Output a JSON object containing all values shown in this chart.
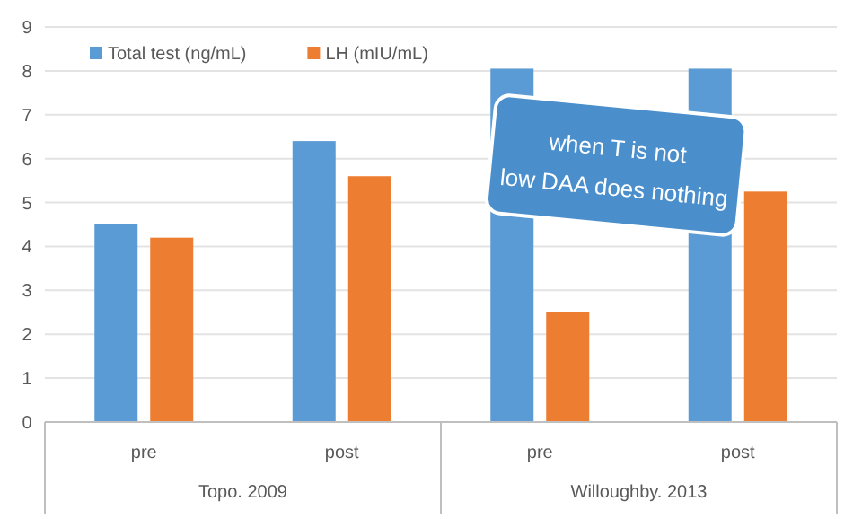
{
  "chart_data": {
    "type": "bar",
    "categories": [
      "pre",
      "post",
      "pre",
      "post"
    ],
    "series": [
      {
        "name": "Total test (ng/mL)",
        "color": "#5b9bd5",
        "values": [
          4.5,
          6.4,
          8.05,
          8.05
        ]
      },
      {
        "name": "LH (mIU/mL)",
        "color": "#ed7d31",
        "values": [
          4.2,
          5.6,
          2.5,
          5.25
        ]
      }
    ],
    "ylim": [
      0,
      9
    ],
    "yticks": [
      0,
      1,
      2,
      3,
      4,
      5,
      6,
      7,
      8,
      9
    ],
    "grid": "y",
    "legend": "top left",
    "annotations": [
      "Topo. 2009",
      "Willoughby. 2013",
      "when T is not low DAA does nothing"
    ]
  }
}
